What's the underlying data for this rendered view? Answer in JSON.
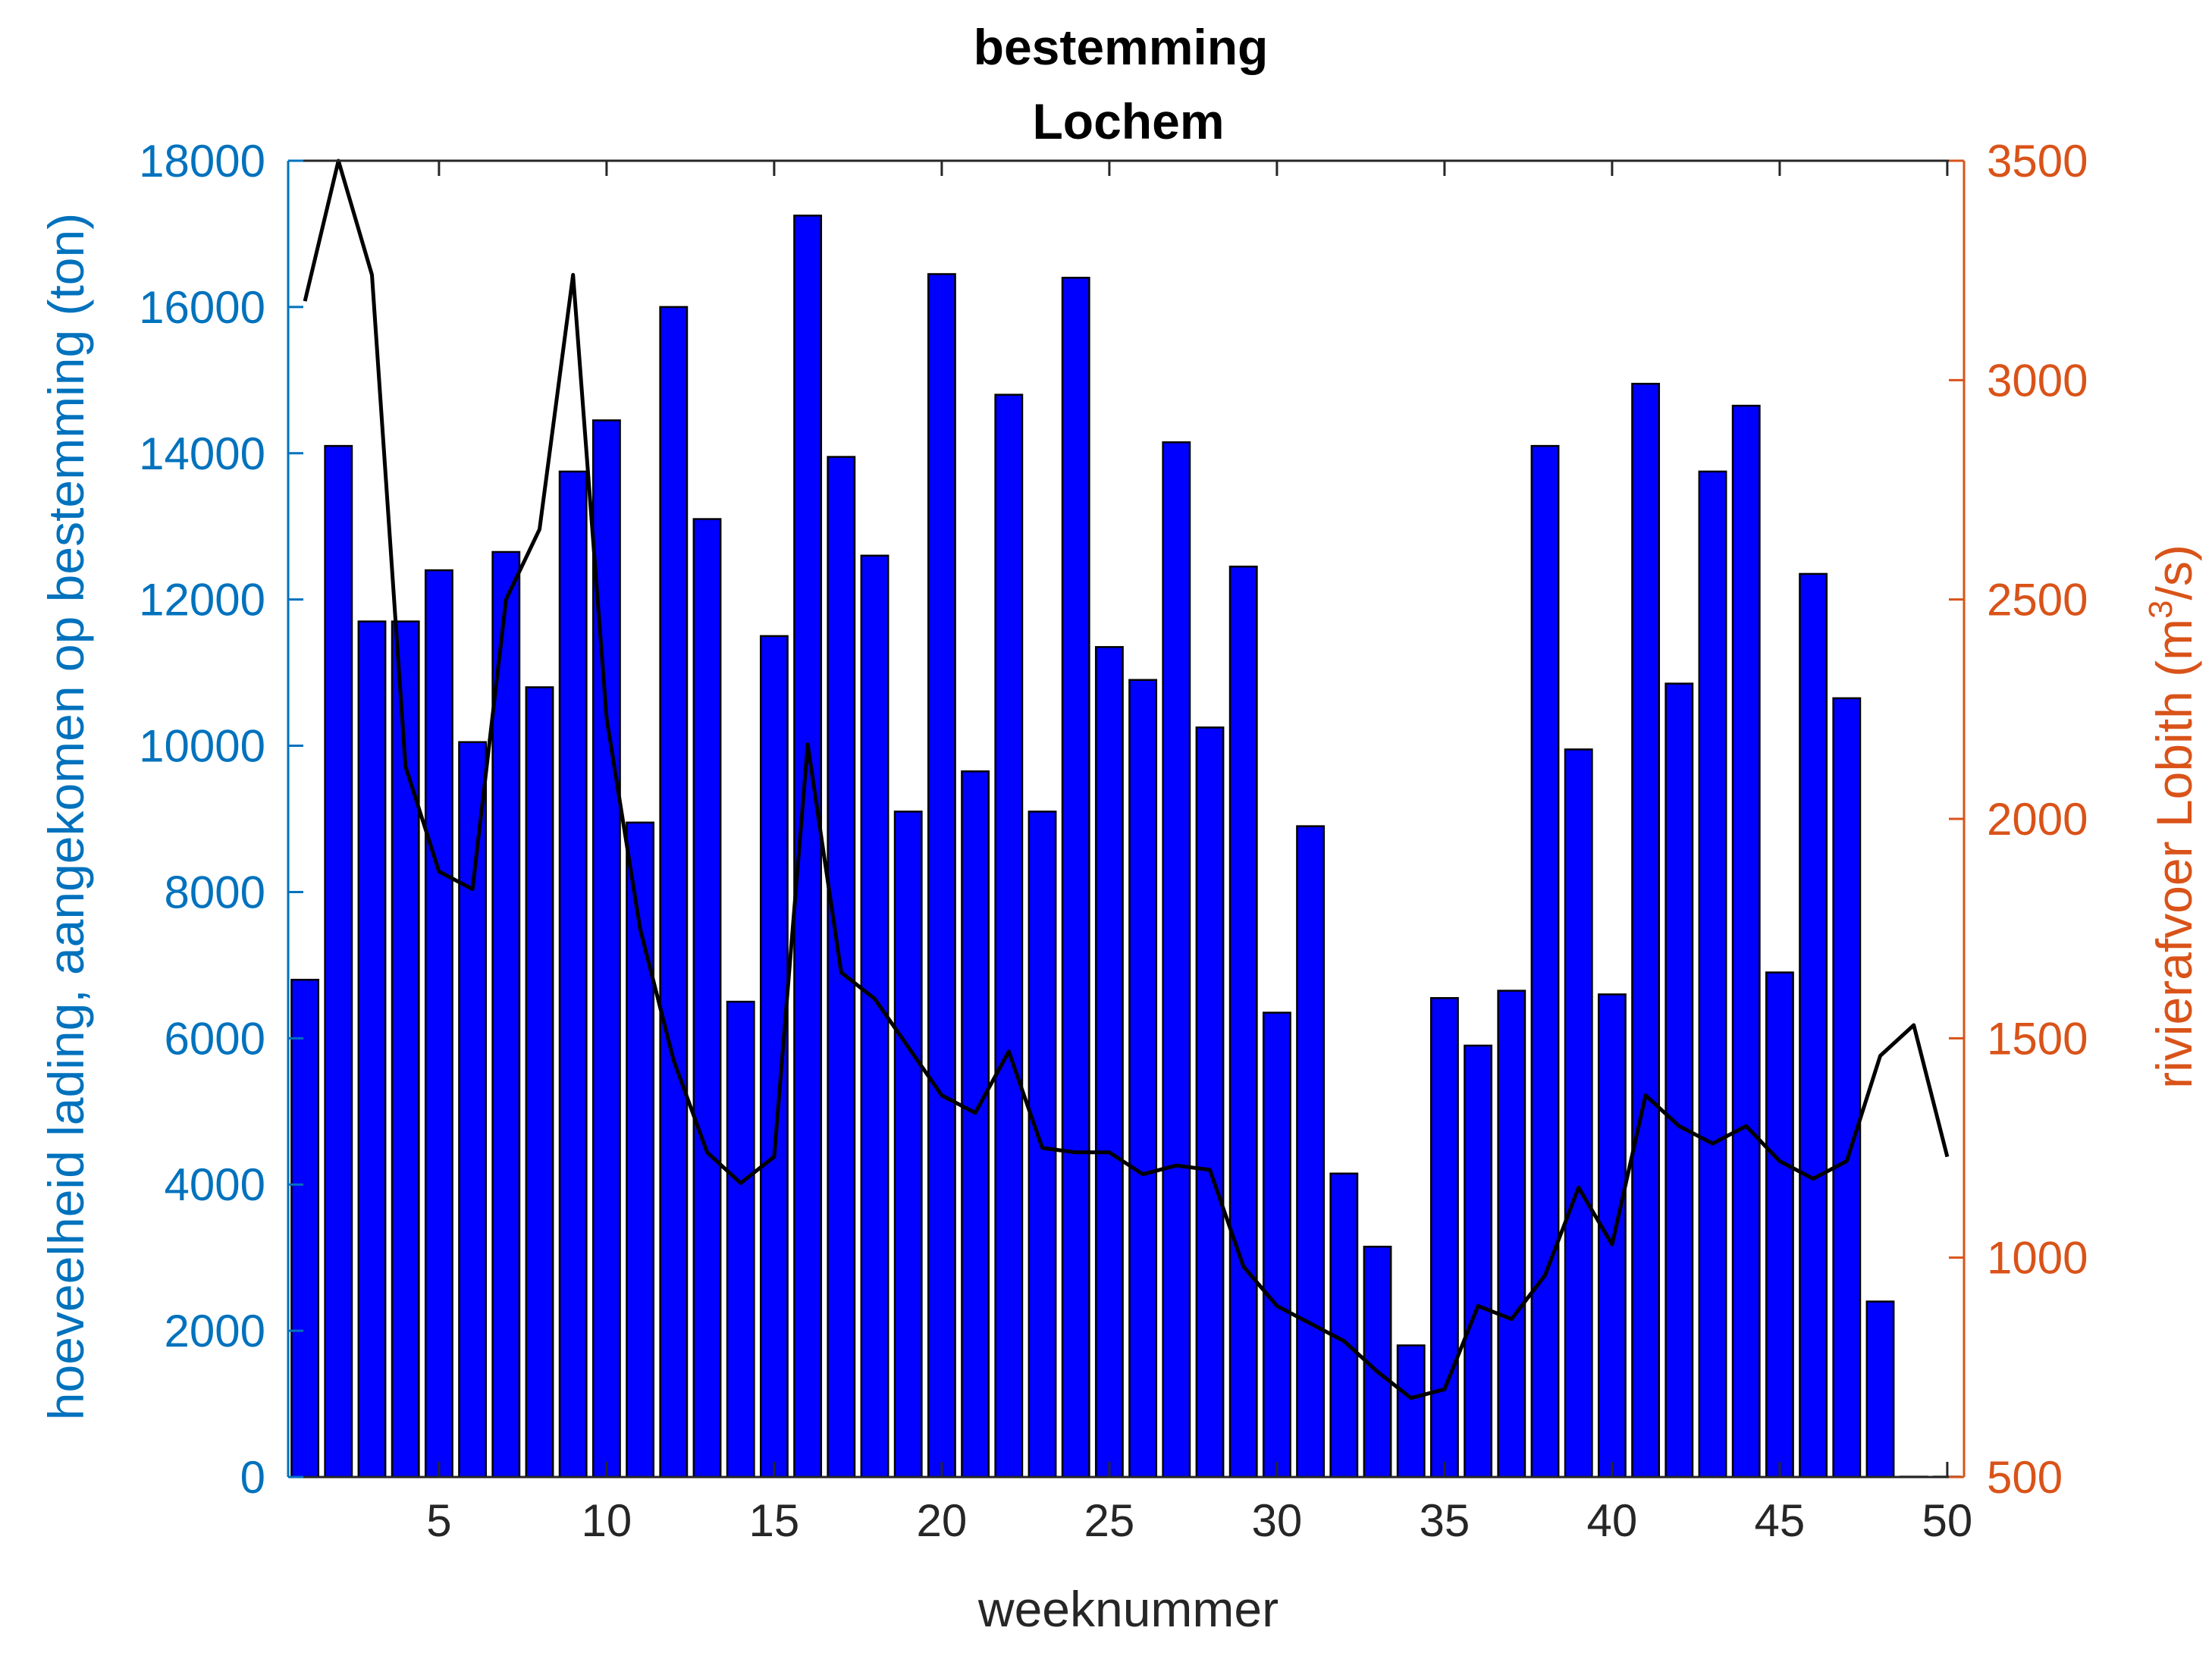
{
  "colors": {
    "left_axis": "#0072BD",
    "right_axis": "#D95319",
    "bars": "#0000FF",
    "bar_edge": "#000000",
    "line": "#000000",
    "x_axis": "#262626"
  },
  "chart_data": {
    "type": "bar",
    "title_lines": [
      "bestemming",
      "Lochem"
    ],
    "xlabel": "weeknummer",
    "ylabel_left": "hoeveelheid lading, aangekomen op bestemming (ton)",
    "ylabel_right_prefix": "rivierafvoer Lobith (m",
    "ylabel_right_sup": "3",
    "ylabel_right_suffix": "/s)",
    "xlim": [
      0.5,
      50.5
    ],
    "xticks": [
      5,
      10,
      15,
      20,
      25,
      30,
      35,
      40,
      45,
      50
    ],
    "ylim_left": [
      0,
      18000
    ],
    "yticks_left": [
      0,
      2000,
      4000,
      6000,
      8000,
      10000,
      12000,
      14000,
      16000,
      18000
    ],
    "ylim_right": [
      500,
      3500
    ],
    "yticks_right": [
      500,
      1000,
      1500,
      2000,
      2500,
      3000,
      3500
    ],
    "grid": false,
    "series": [
      {
        "axis": "left",
        "type": "bar",
        "x": [
          1,
          2,
          3,
          4,
          5,
          6,
          7,
          8,
          9,
          10,
          11,
          12,
          13,
          14,
          15,
          16,
          17,
          18,
          19,
          20,
          21,
          22,
          23,
          24,
          25,
          26,
          27,
          28,
          29,
          30,
          31,
          32,
          33,
          34,
          35,
          36,
          37,
          38,
          39,
          40,
          41,
          42,
          43,
          44,
          45,
          46,
          47,
          48,
          49,
          50
        ],
        "values": [
          6800,
          14100,
          11700,
          11700,
          12400,
          10050,
          12650,
          10800,
          13750,
          14450,
          8950,
          16000,
          13100,
          6500,
          11500,
          17250,
          13950,
          12600,
          9100,
          16450,
          9650,
          14800,
          9100,
          16400,
          11350,
          10900,
          14150,
          10250,
          12450,
          6350,
          8900,
          4150,
          3150,
          1800,
          6550,
          5900,
          6650,
          14100,
          9950,
          6600,
          14950,
          10850,
          13750,
          14650,
          6900,
          12350,
          10650,
          2400,
          0,
          0
        ]
      },
      {
        "axis": "right",
        "type": "line",
        "x": [
          1,
          2,
          3,
          4,
          5,
          6,
          7,
          8,
          9,
          10,
          11,
          12,
          13,
          14,
          15,
          16,
          17,
          18,
          19,
          20,
          21,
          22,
          23,
          24,
          25,
          26,
          27,
          28,
          29,
          30,
          31,
          32,
          33,
          34,
          35,
          36,
          37,
          38,
          39,
          40,
          41,
          42,
          43,
          44,
          45,
          46,
          47,
          48,
          49,
          50
        ],
        "values": [
          3180,
          3500,
          3240,
          2120,
          1880,
          1840,
          2500,
          2660,
          3240,
          2230,
          1750,
          1450,
          1240,
          1170,
          1230,
          2170,
          1650,
          1590,
          1480,
          1370,
          1330,
          1470,
          1250,
          1240,
          1240,
          1190,
          1210,
          1200,
          980,
          890,
          850,
          810,
          740,
          680,
          700,
          890,
          860,
          960,
          1160,
          1030,
          1370,
          1300,
          1260,
          1300,
          1220,
          1180,
          1220,
          1460,
          1530,
          1230
        ]
      }
    ]
  }
}
